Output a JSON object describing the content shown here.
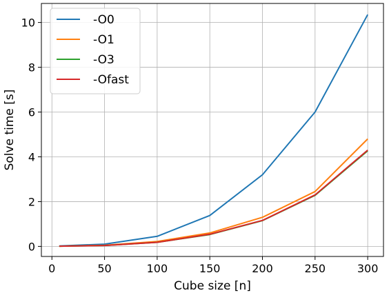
{
  "chart_data": {
    "type": "line",
    "title": "",
    "xlabel": "Cube size [n]",
    "ylabel": "Solve time [s]",
    "xlim": [
      -10,
      315
    ],
    "ylim": [
      -0.45,
      10.85
    ],
    "xticks": [
      0,
      50,
      100,
      150,
      200,
      250,
      300
    ],
    "yticks": [
      0,
      2,
      4,
      6,
      8,
      10
    ],
    "grid": true,
    "legend_position": "top-left",
    "x": [
      7,
      50,
      100,
      150,
      200,
      250,
      300
    ],
    "series": [
      {
        "name": "-O0",
        "color": "#1f77b4",
        "values": [
          0.02,
          0.1,
          0.45,
          1.38,
          3.2,
          6.0,
          10.35
        ]
      },
      {
        "name": "-O1",
        "color": "#ff7f0e",
        "values": [
          0.01,
          0.05,
          0.22,
          0.6,
          1.3,
          2.45,
          4.8
        ]
      },
      {
        "name": "-O3",
        "color": "#2ca02c",
        "values": [
          0.01,
          0.04,
          0.18,
          0.53,
          1.15,
          2.28,
          4.27
        ]
      },
      {
        "name": "-Ofast",
        "color": "#d62728",
        "values": [
          0.01,
          0.04,
          0.18,
          0.54,
          1.16,
          2.3,
          4.3
        ]
      }
    ]
  }
}
